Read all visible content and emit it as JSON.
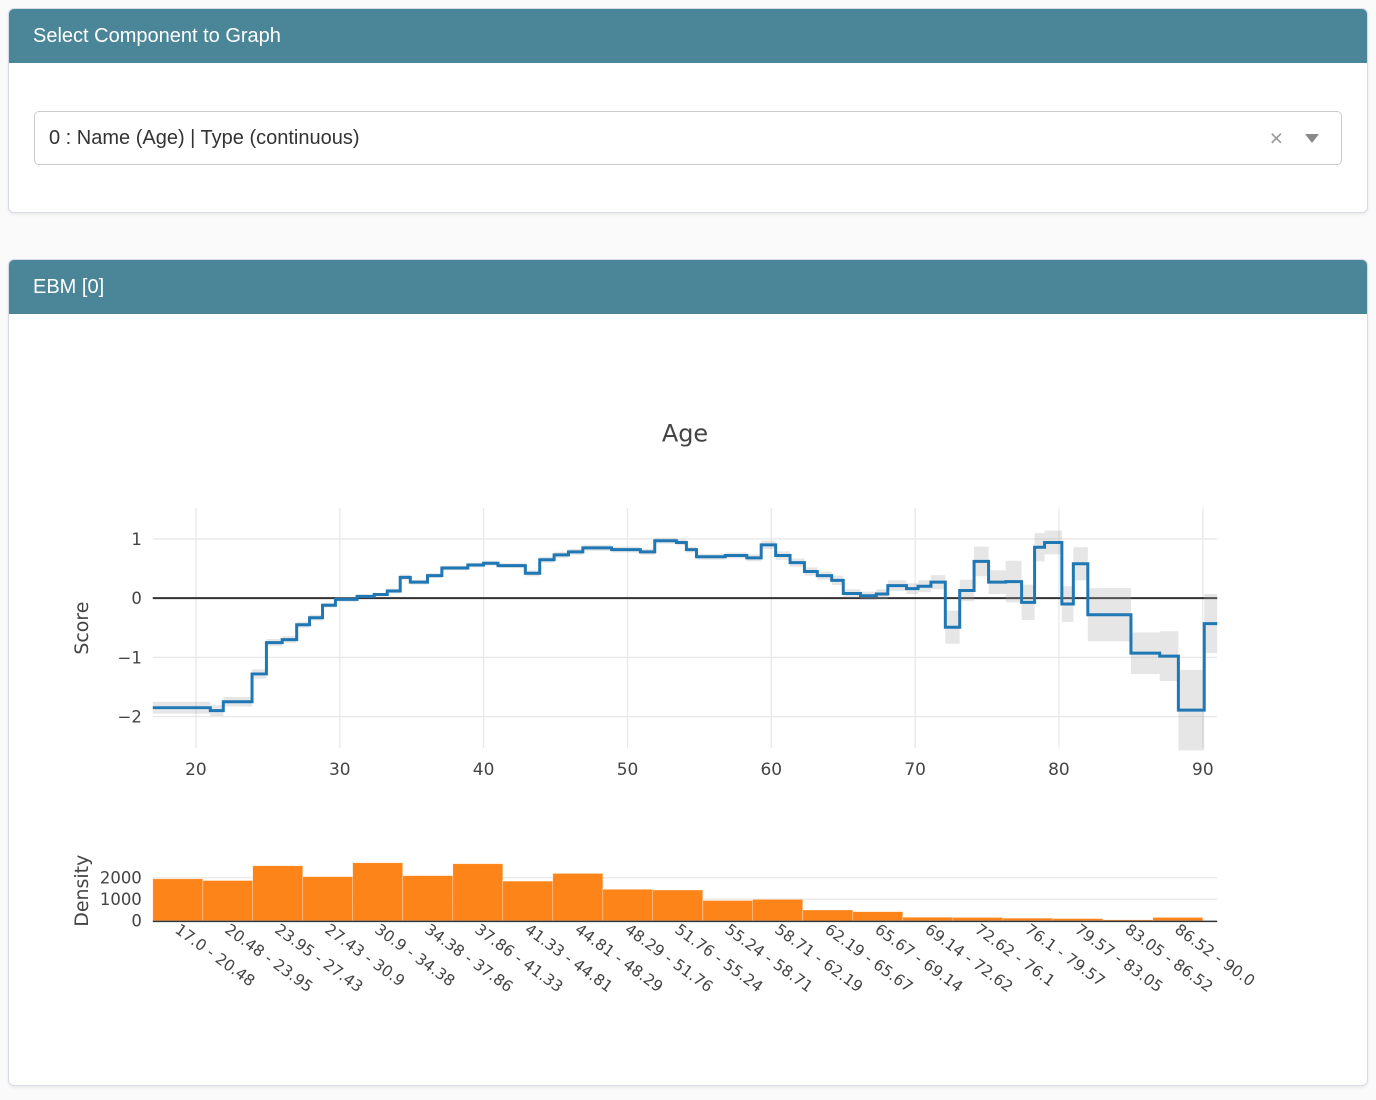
{
  "colors": {
    "header_teal": "#4A8698",
    "line_blue": "#1f77b4",
    "band_gray": "rgba(165,165,165,0.28)",
    "bar_orange": "#fc8418",
    "axis_text": "#444444",
    "zero_line": "#323232",
    "grid": "#e8e8e8",
    "density_axis": "#333333"
  },
  "select_card": {
    "header_label": "Select Component to Graph",
    "dropdown": {
      "value": "0 : Name (Age) | Type (continuous)",
      "clear_icon": "×",
      "caret_icon": "caret-down"
    }
  },
  "ebm_card": {
    "header_label": "EBM [0]"
  },
  "chart_data": [
    {
      "type": "line",
      "subtype": "step-with-error-band",
      "title": "Age",
      "xlabel": "",
      "ylabel": "Score",
      "xlim": [
        17,
        91
      ],
      "ylim": [
        -2.53,
        1.52
      ],
      "xticks": [
        20,
        30,
        40,
        50,
        60,
        70,
        80,
        90
      ],
      "yticks": [
        1,
        0,
        -1,
        -2
      ],
      "grid": true,
      "zero_line": true,
      "legend": "none",
      "series": [
        {
          "name": "score",
          "x_end": 91,
          "steps": [
            [
              17,
              -1.85,
              0.1
            ],
            [
              21,
              -1.9,
              0.09
            ],
            [
              21.9,
              -1.75,
              0.08
            ],
            [
              23.9,
              -1.28,
              0.08
            ],
            [
              24.9,
              -0.75,
              0.06
            ],
            [
              26,
              -0.7,
              0.06
            ],
            [
              27,
              -0.45,
              0.05
            ],
            [
              27.9,
              -0.33,
              0.05
            ],
            [
              28.8,
              -0.12,
              0.04
            ],
            [
              29.7,
              -0.02,
              0.04
            ],
            [
              31.2,
              0.03,
              0.03
            ],
            [
              32.4,
              0.06,
              0.03
            ],
            [
              33.3,
              0.12,
              0.04
            ],
            [
              34.2,
              0.35,
              0.05
            ],
            [
              34.9,
              0.27,
              0.04
            ],
            [
              36.1,
              0.38,
              0.04
            ],
            [
              37.1,
              0.51,
              0.04
            ],
            [
              38.9,
              0.56,
              0.04
            ],
            [
              40,
              0.59,
              0.04
            ],
            [
              41,
              0.55,
              0.04
            ],
            [
              42.9,
              0.42,
              0.05
            ],
            [
              43.9,
              0.65,
              0.05
            ],
            [
              44.9,
              0.73,
              0.05
            ],
            [
              45.9,
              0.78,
              0.05
            ],
            [
              46.9,
              0.85,
              0.05
            ],
            [
              48.9,
              0.82,
              0.05
            ],
            [
              50.9,
              0.78,
              0.05
            ],
            [
              51.9,
              0.97,
              0.05
            ],
            [
              53.4,
              0.94,
              0.05
            ],
            [
              54.1,
              0.82,
              0.05
            ],
            [
              54.8,
              0.7,
              0.05
            ],
            [
              56.8,
              0.72,
              0.05
            ],
            [
              58.3,
              0.68,
              0.06
            ],
            [
              59.3,
              0.9,
              0.07
            ],
            [
              60.3,
              0.72,
              0.07
            ],
            [
              61.3,
              0.6,
              0.07
            ],
            [
              62.3,
              0.45,
              0.07
            ],
            [
              63.2,
              0.38,
              0.07
            ],
            [
              64.2,
              0.3,
              0.08
            ],
            [
              65,
              0.08,
              0.07
            ],
            [
              66.2,
              0.04,
              0.07
            ],
            [
              67.3,
              0.07,
              0.08
            ],
            [
              68.1,
              0.21,
              0.09
            ],
            [
              69.4,
              0.16,
              0.09
            ],
            [
              70.2,
              0.2,
              0.1
            ],
            [
              71.1,
              0.27,
              0.12
            ],
            [
              72.1,
              -0.49,
              0.28
            ],
            [
              73.1,
              0.13,
              0.18
            ],
            [
              74.1,
              0.62,
              0.25
            ],
            [
              75.1,
              0.27,
              0.2
            ],
            [
              76.3,
              0.28,
              0.35
            ],
            [
              77.4,
              -0.07,
              0.3
            ],
            [
              78.3,
              0.86,
              0.24
            ],
            [
              79,
              0.94,
              0.2
            ],
            [
              80.2,
              -0.1,
              0.3
            ],
            [
              81,
              0.58,
              0.28
            ],
            [
              82,
              -0.28,
              0.45
            ],
            [
              85,
              -0.93,
              0.35
            ],
            [
              87,
              -0.98,
              0.42
            ],
            [
              88.3,
              -1.89,
              0.68
            ],
            [
              90.1,
              -0.43,
              0.5
            ]
          ]
        }
      ]
    },
    {
      "type": "bar",
      "subtype": "histogram",
      "title": "",
      "xlabel": "",
      "ylabel": "Density",
      "yticks": [
        0,
        1000,
        2000
      ],
      "tick_angle": 36,
      "bin_edges": [
        17.0,
        20.48,
        23.95,
        27.43,
        30.9,
        34.38,
        37.86,
        41.33,
        44.81,
        48.29,
        51.76,
        55.24,
        58.71,
        62.19,
        65.67,
        69.14,
        72.62,
        76.1,
        79.57,
        83.05,
        86.52,
        90.0
      ],
      "categories": [
        "17.0 - 20.48",
        "20.48 - 23.95",
        "23.95 - 27.43",
        "27.43 - 30.9",
        "30.9 - 34.38",
        "34.38 - 37.86",
        "37.86 - 41.33",
        "41.33 - 44.81",
        "44.81 - 48.29",
        "48.29 - 51.76",
        "51.76 - 55.24",
        "55.24 - 58.71",
        "58.71 - 62.19",
        "62.19 - 65.67",
        "65.67 - 69.14",
        "69.14 - 72.62",
        "72.62 - 76.1",
        "76.1 - 79.57",
        "79.57 - 83.05",
        "83.05 - 86.52",
        "86.52 - 90.0"
      ],
      "values": [
        1950,
        1870,
        2560,
        2050,
        2700,
        2100,
        2650,
        1840,
        2200,
        1460,
        1430,
        940,
        990,
        500,
        420,
        160,
        150,
        115,
        100,
        35,
        150
      ]
    }
  ]
}
